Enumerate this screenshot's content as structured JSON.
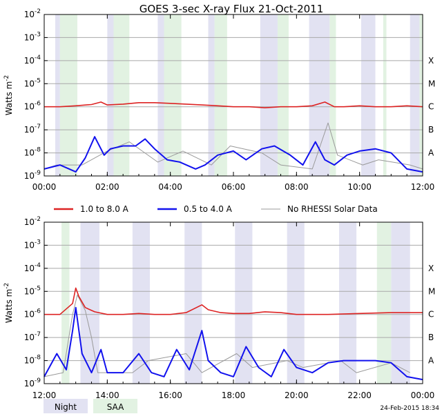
{
  "title": "GOES 3-sec X-ray Flux   21-Oct-2011",
  "footer_timestamp": "24-Feb-2015 18:34",
  "colors": {
    "long_channel": "#dd2222",
    "short_channel": "#1111ee",
    "no_rhessi": "#999999",
    "night_band": "#e2e2f2",
    "saa_band": "#e2f2e2",
    "grid": "#a8a8a8"
  },
  "legend": {
    "long_label": "1.0 to 8.0 A",
    "short_label": "0.5 to 4.0 A",
    "gray_label": "No RHESSI Solar Data"
  },
  "band_legend": {
    "night": "Night",
    "saa": "SAA"
  },
  "chart_data": [
    {
      "type": "line",
      "panel": "top",
      "title": "GOES 3-sec X-ray Flux   21-Oct-2011",
      "ylabel": "Watts m^-2",
      "yscale": "log",
      "ylim": [
        1e-09,
        0.01
      ],
      "xlim_hours": [
        0,
        12
      ],
      "x_ticks": [
        "00:00",
        "02:00",
        "04:00",
        "06:00",
        "08:00",
        "10:00",
        "12:00"
      ],
      "y_ticks": [
        "10^-9",
        "10^-8",
        "10^-7",
        "10^-6",
        "10^-5",
        "10^-4",
        "10^-3",
        "10^-2"
      ],
      "flare_classes": [
        {
          "label": "A",
          "level": 1e-08
        },
        {
          "label": "B",
          "level": 1e-07
        },
        {
          "label": "C",
          "level": 1e-06
        },
        {
          "label": "M",
          "level": 1e-05
        },
        {
          "label": "X",
          "level": 0.0001
        }
      ],
      "night_bands_hours": [
        [
          0.35,
          0.5
        ],
        [
          2.0,
          2.2
        ],
        [
          3.6,
          3.8
        ],
        [
          5.2,
          5.4
        ],
        [
          6.85,
          7.4
        ],
        [
          8.4,
          9.05
        ],
        [
          10.05,
          10.5
        ],
        [
          11.6,
          11.9
        ]
      ],
      "saa_bands_hours": [
        [
          0.5,
          1.05
        ],
        [
          2.2,
          2.7
        ],
        [
          3.8,
          4.35
        ],
        [
          5.4,
          5.8
        ],
        [
          7.4,
          7.75
        ],
        [
          9.05,
          9.25
        ],
        [
          10.75,
          10.85
        ],
        [
          11.9,
          12.0
        ]
      ],
      "series": [
        {
          "name": "1.0 to 8.0 A",
          "color": "#dd2222",
          "x": [
            0.0,
            0.5,
            1.0,
            1.5,
            1.8,
            2.0,
            2.5,
            3.0,
            3.5,
            4.0,
            4.5,
            5.0,
            5.5,
            6.0,
            6.5,
            7.0,
            7.5,
            8.0,
            8.5,
            8.9,
            9.2,
            9.5,
            10.0,
            10.5,
            11.0,
            11.5,
            12.0
          ],
          "y": [
            1e-06,
            1e-06,
            1.1e-06,
            1.25e-06,
            1.6e-06,
            1.2e-06,
            1.3e-06,
            1.5e-06,
            1.5e-06,
            1.4e-06,
            1.3e-06,
            1.2e-06,
            1.1e-06,
            1e-06,
            1e-06,
            9e-07,
            1e-06,
            1e-06,
            1.1e-06,
            1.6e-06,
            1e-06,
            1e-06,
            1.1e-06,
            1e-06,
            1e-06,
            1.1e-06,
            1e-06
          ]
        },
        {
          "name": "0.5 to 4.0 A",
          "color": "#1111ee",
          "x": [
            0.0,
            0.5,
            1.0,
            1.3,
            1.6,
            1.9,
            2.1,
            2.5,
            2.9,
            3.2,
            3.5,
            3.9,
            4.3,
            4.8,
            5.1,
            5.5,
            6.0,
            6.4,
            6.9,
            7.3,
            7.8,
            8.2,
            8.6,
            8.9,
            9.2,
            9.6,
            10.0,
            10.5,
            11.0,
            11.5,
            12.0
          ],
          "y": [
            2e-09,
            3e-09,
            1.5e-09,
            6e-09,
            5e-08,
            8e-09,
            1.5e-08,
            2e-08,
            2e-08,
            4e-08,
            1.5e-08,
            5e-09,
            4e-09,
            2e-09,
            3e-09,
            8e-09,
            1.2e-08,
            5e-09,
            1.5e-08,
            2e-08,
            8e-09,
            3e-09,
            3e-08,
            5e-09,
            3e-09,
            8e-09,
            1.2e-08,
            1.5e-08,
            1e-08,
            2e-09,
            1.5e-09
          ]
        },
        {
          "name": "No RHESSI Solar Data",
          "color": "#999999",
          "x": [
            0.0,
            0.4,
            1.2,
            2.0,
            2.7,
            3.6,
            4.4,
            5.3,
            5.9,
            6.9,
            7.5,
            8.5,
            9.0,
            9.3,
            10.1,
            10.6,
            11.6,
            12.0
          ],
          "y": [
            2e-09,
            3e-09,
            3e-09,
            1.2e-08,
            3e-08,
            4e-09,
            1.2e-08,
            3e-09,
            2e-08,
            1e-08,
            3e-09,
            2e-09,
            2e-07,
            8e-09,
            3e-09,
            5e-09,
            3e-09,
            2e-09
          ]
        }
      ]
    },
    {
      "type": "line",
      "panel": "bottom",
      "ylabel": "Watts m^-2",
      "yscale": "log",
      "ylim": [
        1e-09,
        0.01
      ],
      "xlim_hours": [
        12,
        24
      ],
      "x_ticks": [
        "12:00",
        "14:00",
        "16:00",
        "18:00",
        "20:00",
        "22:00",
        "00:00"
      ],
      "y_ticks": [
        "10^-9",
        "10^-8",
        "10^-7",
        "10^-6",
        "10^-5",
        "10^-4",
        "10^-3",
        "10^-2"
      ],
      "flare_classes": [
        {
          "label": "A",
          "level": 1e-08
        },
        {
          "label": "B",
          "level": 1e-07
        },
        {
          "label": "C",
          "level": 1e-06
        },
        {
          "label": "M",
          "level": 1e-05
        },
        {
          "label": "X",
          "level": 0.0001
        }
      ],
      "night_bands_hours": [
        [
          13.15,
          13.75
        ],
        [
          14.8,
          15.35
        ],
        [
          16.45,
          17.0
        ],
        [
          18.05,
          18.6
        ],
        [
          19.7,
          20.25
        ],
        [
          21.35,
          21.9
        ],
        [
          23.0,
          23.6
        ]
      ],
      "saa_bands_hours": [
        [
          12.55,
          12.8
        ],
        [
          22.55,
          23.0
        ]
      ],
      "series": [
        {
          "name": "1.0 to 8.0 A",
          "color": "#dd2222",
          "x": [
            12.0,
            12.5,
            12.9,
            13.0,
            13.1,
            13.3,
            13.6,
            14.0,
            14.5,
            15.0,
            15.5,
            16.0,
            16.5,
            17.0,
            17.2,
            17.6,
            18.0,
            18.5,
            19.0,
            19.5,
            20.0,
            21.0,
            22.0,
            23.0,
            24.0
          ],
          "y": [
            1e-06,
            1e-06,
            3e-06,
            1.4e-05,
            6e-06,
            2e-06,
            1.3e-06,
            1e-06,
            1e-06,
            1.1e-06,
            1e-06,
            1e-06,
            1.2e-06,
            2.6e-06,
            1.6e-06,
            1.2e-06,
            1.1e-06,
            1.1e-06,
            1.3e-06,
            1.2e-06,
            1e-06,
            1e-06,
            1.1e-06,
            1.2e-06,
            1.2e-06
          ]
        },
        {
          "name": "0.5 to 4.0 A",
          "color": "#1111ee",
          "x": [
            12.0,
            12.4,
            12.7,
            12.9,
            13.0,
            13.2,
            13.5,
            13.8,
            14.0,
            14.5,
            15.0,
            15.4,
            15.8,
            16.2,
            16.6,
            17.0,
            17.2,
            17.6,
            18.0,
            18.4,
            18.8,
            19.2,
            19.6,
            20.0,
            20.5,
            21.0,
            21.5,
            22.0,
            22.5,
            23.0,
            23.5,
            24.0
          ],
          "y": [
            2e-09,
            2e-08,
            4e-09,
            2e-07,
            2e-06,
            2e-08,
            3e-09,
            3e-08,
            3e-09,
            3e-09,
            2e-08,
            3e-09,
            2e-09,
            3e-08,
            4e-09,
            2e-07,
            1e-08,
            3e-09,
            2e-09,
            4e-08,
            5e-09,
            2e-09,
            3e-08,
            5e-09,
            3e-09,
            8e-09,
            1e-08,
            1e-08,
            1e-08,
            8e-09,
            2e-09,
            1.5e-09
          ]
        },
        {
          "name": "No RHESSI Solar Data",
          "color": "#999999",
          "x": [
            12.0,
            12.6,
            12.9,
            13.05,
            13.3,
            13.5,
            13.7,
            14.8,
            15.3,
            16.5,
            17.0,
            18.1,
            18.6,
            19.7,
            20.2,
            21.4,
            21.9,
            23.0,
            23.6
          ],
          "y": [
            2e-09,
            3e-09,
            1e-06,
            7e-06,
            1.5e-06,
            1e-07,
            3e-09,
            3e-09,
            1e-08,
            2e-08,
            3e-09,
            2e-08,
            5e-09,
            1e-08,
            5e-09,
            1e-08,
            3e-09,
            8e-09,
            3e-09
          ]
        }
      ]
    }
  ]
}
